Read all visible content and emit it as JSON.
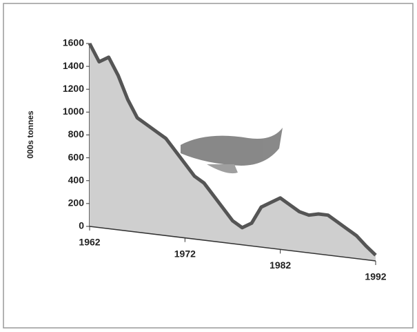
{
  "chart_data": {
    "type": "area",
    "y_label": "000s tonnes",
    "x": [
      1962,
      1963,
      1964,
      1965,
      1966,
      1967,
      1968,
      1969,
      1970,
      1971,
      1972,
      1973,
      1974,
      1975,
      1976,
      1977,
      1978,
      1979,
      1980,
      1981,
      1982,
      1983,
      1984,
      1985,
      1986,
      1987,
      1988,
      1989,
      1990,
      1991,
      1992
    ],
    "values": [
      1600,
      1450,
      1500,
      1350,
      1150,
      1000,
      950,
      900,
      850,
      750,
      650,
      550,
      500,
      400,
      300,
      200,
      150,
      200,
      350,
      400,
      450,
      400,
      350,
      330,
      350,
      350,
      300,
      250,
      200,
      120,
      50
    ],
    "color": "#555555",
    "fill": "#cfcfcf",
    "xlim": [
      1962,
      1992
    ],
    "xticks": [
      1962,
      1972,
      1982,
      1992
    ],
    "ylim": [
      0,
      1600
    ],
    "yticks": [
      0,
      200,
      400,
      600,
      800,
      1000,
      1200,
      1400,
      1600
    ]
  }
}
